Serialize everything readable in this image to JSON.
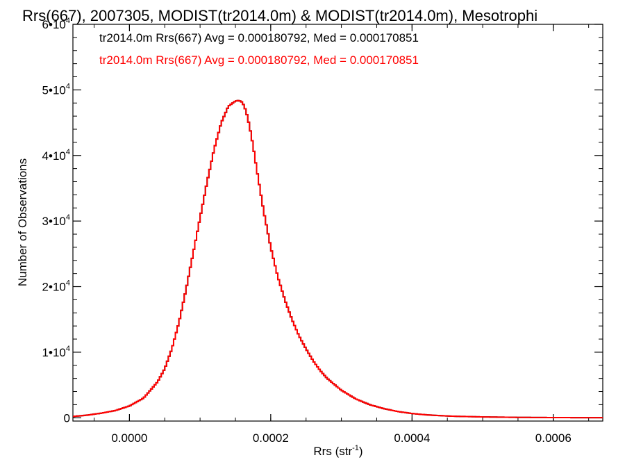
{
  "chart_data": {
    "type": "line",
    "title": "Rrs(667), 2007305, MODIST(tr2014.0m) & MODIST(tr2014.0m), Mesotrophi",
    "xlabel": "Rrs (str",
    "xlabel_sup": "-1",
    "xlabel_close": ")",
    "ylabel": "Number of Observations",
    "xlim": [
      -8e-05,
      0.00067
    ],
    "ylim": [
      -500,
      60000
    ],
    "x_ticks": [
      {
        "value": 0.0,
        "label": "0.0000"
      },
      {
        "value": 0.0002,
        "label": "0.0002"
      },
      {
        "value": 0.0004,
        "label": "0.0004"
      },
      {
        "value": 0.0006,
        "label": "0.0006"
      }
    ],
    "y_ticks": [
      {
        "value": 0,
        "mantissa": "0",
        "exp": ""
      },
      {
        "value": 10000,
        "mantissa": "1•10",
        "exp": "4"
      },
      {
        "value": 20000,
        "mantissa": "2•10",
        "exp": "4"
      },
      {
        "value": 30000,
        "mantissa": "3•10",
        "exp": "4"
      },
      {
        "value": 40000,
        "mantissa": "4•10",
        "exp": "4"
      },
      {
        "value": 50000,
        "mantissa": "5•10",
        "exp": "4"
      },
      {
        "value": 60000,
        "mantissa": "6•10",
        "exp": "4"
      }
    ],
    "series": [
      {
        "name": "tr2014.0m Rrs(667)",
        "color": "#000000",
        "x": [
          -8e-05,
          -6e-05,
          -4e-05,
          -2e-05,
          0.0,
          2e-05,
          4e-05,
          5e-05,
          6e-05,
          7e-05,
          8e-05,
          9e-05,
          0.0001,
          0.00011,
          0.00012,
          0.00013,
          0.00014,
          0.00015,
          0.000155,
          0.00016,
          0.000165,
          0.00017,
          0.000175,
          0.00018,
          0.00019,
          0.0002,
          0.00021,
          0.00022,
          0.00023,
          0.00024,
          0.00025,
          0.00026,
          0.00027,
          0.00028,
          0.0003,
          0.00032,
          0.00034,
          0.00036,
          0.00038,
          0.0004,
          0.00042,
          0.00044,
          0.00046,
          0.0005,
          0.00055,
          0.0006,
          0.00067
        ],
        "y": [
          200,
          400,
          700,
          1100,
          1800,
          3000,
          5500,
          7500,
          10500,
          14500,
          19500,
          25000,
          30500,
          36000,
          41000,
          45000,
          47500,
          48300,
          48400,
          48100,
          46800,
          44500,
          41500,
          38000,
          31500,
          26000,
          21500,
          18000,
          15000,
          12500,
          10500,
          8700,
          7200,
          6000,
          4200,
          2900,
          2000,
          1400,
          950,
          650,
          450,
          320,
          230,
          130,
          60,
          30,
          10
        ]
      },
      {
        "name": "tr2014.0m Rrs(667)",
        "color": "#ff0000",
        "x": [
          -8e-05,
          -6e-05,
          -4e-05,
          -2e-05,
          0.0,
          2e-05,
          4e-05,
          5e-05,
          6e-05,
          7e-05,
          8e-05,
          9e-05,
          0.0001,
          0.00011,
          0.00012,
          0.00013,
          0.00014,
          0.00015,
          0.000155,
          0.00016,
          0.000165,
          0.00017,
          0.000175,
          0.00018,
          0.00019,
          0.0002,
          0.00021,
          0.00022,
          0.00023,
          0.00024,
          0.00025,
          0.00026,
          0.00027,
          0.00028,
          0.0003,
          0.00032,
          0.00034,
          0.00036,
          0.00038,
          0.0004,
          0.00042,
          0.00044,
          0.00046,
          0.0005,
          0.00055,
          0.0006,
          0.00067
        ],
        "y": [
          200,
          400,
          700,
          1100,
          1800,
          3000,
          5500,
          7500,
          10500,
          14500,
          19500,
          25000,
          30500,
          36000,
          41000,
          45000,
          47500,
          48300,
          48400,
          48100,
          46800,
          44500,
          41500,
          38000,
          31500,
          26000,
          21500,
          18000,
          15000,
          12500,
          10500,
          8700,
          7200,
          6000,
          4200,
          2900,
          2000,
          1400,
          950,
          650,
          450,
          320,
          230,
          130,
          60,
          30,
          10
        ]
      }
    ],
    "annotations": [
      {
        "text": "tr2014.0m Rrs(667) Avg = 0.000180792, Med = 0.000170851",
        "color": "#000000"
      },
      {
        "text": "tr2014.0m Rrs(667) Avg = 0.000180792, Med = 0.000170851",
        "color": "#ff0000"
      }
    ],
    "grid": false,
    "plot_style": "step"
  }
}
